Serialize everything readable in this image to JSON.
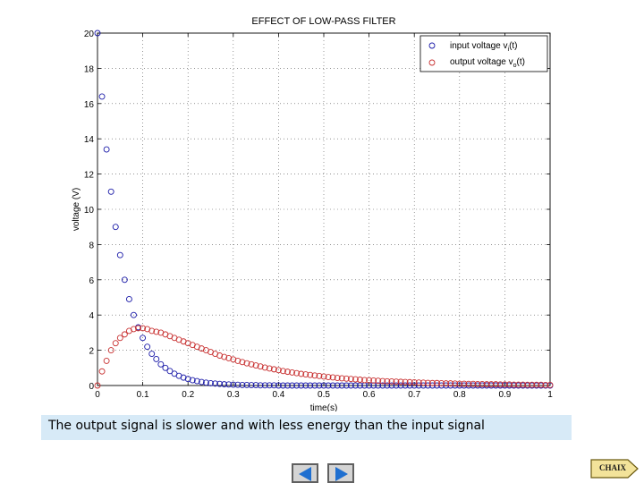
{
  "chart_data": {
    "type": "scatter",
    "title": "EFFECT OF LOW-PASS FILTER",
    "xlabel": "time(s)",
    "ylabel": "voltage (V)",
    "xlim": [
      0,
      1
    ],
    "ylim": [
      0,
      20
    ],
    "xticks": [
      "0",
      "0.1",
      "0.2",
      "0.3",
      "0.4",
      "0.5",
      "0.6",
      "0.7",
      "0.8",
      "0.9",
      "1"
    ],
    "yticks": [
      "0",
      "2",
      "4",
      "6",
      "8",
      "10",
      "12",
      "14",
      "16",
      "18",
      "20"
    ],
    "grid": true,
    "legend_position": "top-right",
    "series": [
      {
        "name": "input voltage vi(t)",
        "legend_main": "input voltage v",
        "legend_sub": "i",
        "legend_tail": "(t)",
        "color": "#1a1aa8",
        "x": [
          0,
          0.01,
          0.02,
          0.03,
          0.04,
          0.05,
          0.06,
          0.07,
          0.08,
          0.09,
          0.1,
          0.11,
          0.12,
          0.13,
          0.14,
          0.15,
          0.16,
          0.17,
          0.18,
          0.19,
          0.2,
          0.21,
          0.22,
          0.23,
          0.24,
          0.25,
          0.26,
          0.27,
          0.28,
          0.29,
          0.3,
          0.31,
          0.32,
          0.33,
          0.34,
          0.35,
          0.36,
          0.37,
          0.38,
          0.39,
          0.4,
          0.41,
          0.42,
          0.43,
          0.44,
          0.45,
          0.46,
          0.47,
          0.48,
          0.49,
          0.5,
          0.51,
          0.52,
          0.53,
          0.54,
          0.55,
          0.56,
          0.57,
          0.58,
          0.59,
          0.6,
          0.61,
          0.62,
          0.63,
          0.64,
          0.65,
          0.66,
          0.67,
          0.68,
          0.69,
          0.7,
          0.71,
          0.72,
          0.73,
          0.74,
          0.75,
          0.76,
          0.77,
          0.78,
          0.79,
          0.8,
          0.81,
          0.82,
          0.83,
          0.84,
          0.85,
          0.86,
          0.87,
          0.88,
          0.89,
          0.9,
          0.91,
          0.92,
          0.93,
          0.94,
          0.95,
          0.96,
          0.97,
          0.98,
          0.99,
          1.0
        ],
        "y": [
          20.0,
          16.4,
          13.4,
          11.0,
          9.0,
          7.4,
          6.0,
          4.9,
          4.0,
          3.3,
          2.7,
          2.2,
          1.8,
          1.5,
          1.2,
          1.0,
          0.82,
          0.67,
          0.55,
          0.45,
          0.37,
          0.3,
          0.25,
          0.2,
          0.16,
          0.13,
          0.11,
          0.09,
          0.07,
          0.06,
          0.05,
          0.04,
          0.03,
          0.03,
          0.02,
          0.02,
          0.01,
          0.01,
          0.01,
          0.01,
          0.0,
          0.0,
          0.0,
          0.0,
          0.0,
          0.0,
          0.0,
          0.0,
          0.0,
          0.0,
          0.0,
          0.0,
          0.0,
          0.0,
          0.0,
          0.0,
          0.0,
          0.0,
          0.0,
          0.0,
          0.0,
          0.0,
          0.0,
          0.0,
          0.0,
          0.0,
          0.0,
          0.0,
          0.0,
          0.0,
          0.0,
          0.0,
          0.0,
          0.0,
          0.0,
          0.0,
          0.0,
          0.0,
          0.0,
          0.0,
          0.0,
          0.0,
          0.0,
          0.0,
          0.0,
          0.0,
          0.0,
          0.0,
          0.0,
          0.0,
          0.0,
          0.0,
          0.0,
          0.0,
          0.0,
          0.0,
          0.0,
          0.0,
          0.0,
          0.0,
          0.0
        ]
      },
      {
        "name": "output voltage vo(t)",
        "legend_main": "output voltage v",
        "legend_sub": "o",
        "legend_tail": "(t)",
        "color": "#c83030",
        "x": [
          0,
          0.01,
          0.02,
          0.03,
          0.04,
          0.05,
          0.06,
          0.07,
          0.08,
          0.09,
          0.1,
          0.11,
          0.12,
          0.13,
          0.14,
          0.15,
          0.16,
          0.17,
          0.18,
          0.19,
          0.2,
          0.21,
          0.22,
          0.23,
          0.24,
          0.25,
          0.26,
          0.27,
          0.28,
          0.29,
          0.3,
          0.31,
          0.32,
          0.33,
          0.34,
          0.35,
          0.36,
          0.37,
          0.38,
          0.39,
          0.4,
          0.41,
          0.42,
          0.43,
          0.44,
          0.45,
          0.46,
          0.47,
          0.48,
          0.49,
          0.5,
          0.51,
          0.52,
          0.53,
          0.54,
          0.55,
          0.56,
          0.57,
          0.58,
          0.59,
          0.6,
          0.61,
          0.62,
          0.63,
          0.64,
          0.65,
          0.66,
          0.67,
          0.68,
          0.69,
          0.7,
          0.71,
          0.72,
          0.73,
          0.74,
          0.75,
          0.76,
          0.77,
          0.78,
          0.79,
          0.8,
          0.81,
          0.82,
          0.83,
          0.84,
          0.85,
          0.86,
          0.87,
          0.88,
          0.89,
          0.9,
          0.91,
          0.92,
          0.93,
          0.94,
          0.95,
          0.96,
          0.97,
          0.98,
          0.99,
          1.0
        ],
        "y": [
          0.0,
          0.8,
          1.4,
          2.0,
          2.4,
          2.7,
          2.9,
          3.1,
          3.2,
          3.25,
          3.25,
          3.2,
          3.1,
          3.05,
          3.0,
          2.9,
          2.8,
          2.7,
          2.6,
          2.5,
          2.4,
          2.3,
          2.2,
          2.1,
          2.0,
          1.9,
          1.8,
          1.7,
          1.62,
          1.55,
          1.48,
          1.4,
          1.33,
          1.26,
          1.2,
          1.14,
          1.08,
          1.02,
          0.97,
          0.92,
          0.87,
          0.82,
          0.78,
          0.74,
          0.7,
          0.66,
          0.63,
          0.6,
          0.57,
          0.54,
          0.51,
          0.48,
          0.46,
          0.43,
          0.41,
          0.39,
          0.37,
          0.35,
          0.33,
          0.31,
          0.3,
          0.28,
          0.27,
          0.25,
          0.24,
          0.23,
          0.22,
          0.21,
          0.2,
          0.19,
          0.18,
          0.17,
          0.16,
          0.15,
          0.14,
          0.14,
          0.13,
          0.12,
          0.12,
          0.11,
          0.1,
          0.1,
          0.09,
          0.09,
          0.08,
          0.08,
          0.07,
          0.07,
          0.07,
          0.06,
          0.06,
          0.06,
          0.05,
          0.05,
          0.05,
          0.04,
          0.04,
          0.04,
          0.04,
          0.03,
          0.03
        ]
      }
    ]
  },
  "caption": "The output signal is slower and with less energy than the input signal",
  "navigation": {
    "prev_icon": "left-triangle-arrow-icon",
    "next_icon": "right-triangle-arrow-icon",
    "button_color": "#1f6fd0",
    "extra_label": "CHAIX"
  },
  "colors": {
    "caption_bg": "#d7eaf7"
  }
}
